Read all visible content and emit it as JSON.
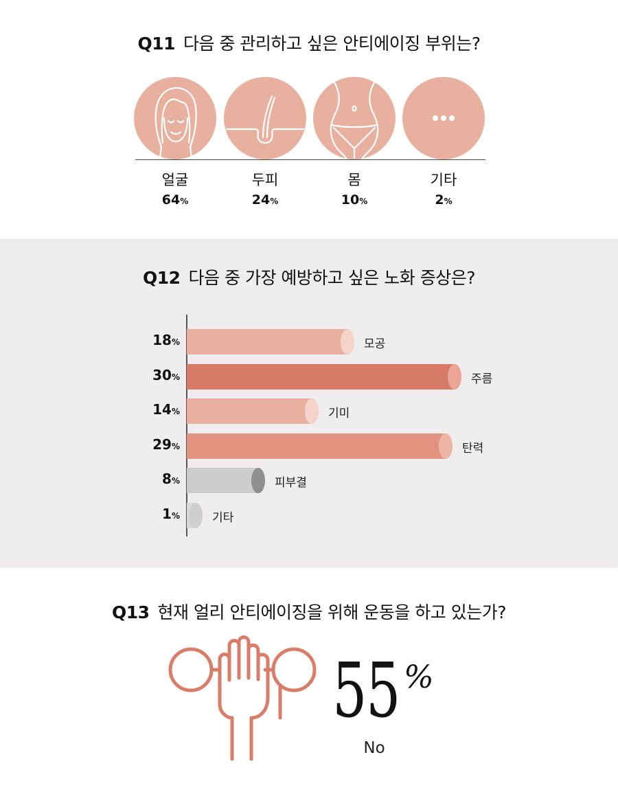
{
  "q11": {
    "number": "Q11",
    "question": "다음 중 관리하고 싶은 안티에이징 부위는?",
    "items": [
      {
        "label": "얼굴",
        "value": "64",
        "icon": "face-icon"
      },
      {
        "label": "두피",
        "value": "24",
        "icon": "hair-follicle-icon"
      },
      {
        "label": "몸",
        "value": "10",
        "icon": "body-icon"
      },
      {
        "label": "기타",
        "value": "2",
        "icon": "ellipsis-icon"
      }
    ],
    "unit": "%",
    "circle_color": "#e8b09e"
  },
  "q12": {
    "number": "Q12",
    "question": "다음 중 가장 예방하고 싶은 노화 증상은?",
    "unit": "%",
    "background": "#efeded"
  },
  "q13": {
    "number": "Q13",
    "question": "현재 얼리 안티에이징을 위해 운동을 하고 있는가?",
    "value": "55",
    "unit": "%",
    "answer": "No",
    "icon": "dumbbell-hand-icon",
    "icon_color": "#d97d6a"
  },
  "chart_data": [
    {
      "type": "pie",
      "title": "다음 중 관리하고 싶은 안티에이징 부위는?",
      "categories": [
        "얼굴",
        "두피",
        "몸",
        "기타"
      ],
      "values": [
        64,
        24,
        10,
        2
      ],
      "unit": "%"
    },
    {
      "type": "bar",
      "orientation": "horizontal",
      "title": "다음 중 가장 예방하고 싶은 노화 증상은?",
      "categories": [
        "모공",
        "주름",
        "기미",
        "탄력",
        "피부결",
        "기타"
      ],
      "values": [
        18,
        30,
        14,
        29,
        8,
        1
      ],
      "unit": "%",
      "xlim": [
        0,
        30
      ],
      "colors": [
        {
          "bar": "#e8b09e",
          "cap": "#f4d3c8"
        },
        {
          "bar": "#d87a68",
          "cap": "#eaa594"
        },
        {
          "bar": "#e8b09e",
          "cap": "#f4d3c8"
        },
        {
          "bar": "#e2937f",
          "cap": "#eeb4a4"
        },
        {
          "bar": "#cccccc",
          "cap": "#8f8f8f"
        },
        {
          "bar": "#d8d8d8",
          "cap": "#cfcfcf"
        }
      ]
    }
  ]
}
